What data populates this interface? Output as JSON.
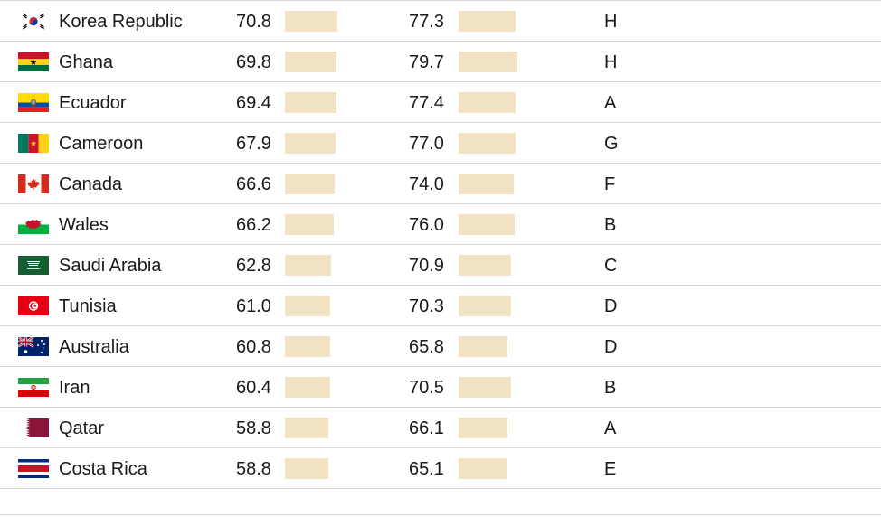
{
  "rows": [
    {
      "country": "Korea Republic",
      "flag": "korea-republic-flag-icon",
      "rating1": "70.8",
      "rating1_value": 70.8,
      "rating2": "77.3",
      "rating2_value": 77.3,
      "group": "H"
    },
    {
      "country": "Ghana",
      "flag": "ghana-flag-icon",
      "rating1": "69.8",
      "rating1_value": 69.8,
      "rating2": "79.7",
      "rating2_value": 79.7,
      "group": "H"
    },
    {
      "country": "Ecuador",
      "flag": "ecuador-flag-icon",
      "rating1": "69.4",
      "rating1_value": 69.4,
      "rating2": "77.4",
      "rating2_value": 77.4,
      "group": "A"
    },
    {
      "country": "Cameroon",
      "flag": "cameroon-flag-icon",
      "rating1": "67.9",
      "rating1_value": 67.9,
      "rating2": "77.0",
      "rating2_value": 77.0,
      "group": "G"
    },
    {
      "country": "Canada",
      "flag": "canada-flag-icon",
      "rating1": "66.6",
      "rating1_value": 66.6,
      "rating2": "74.0",
      "rating2_value": 74.0,
      "group": "F"
    },
    {
      "country": "Wales",
      "flag": "wales-flag-icon",
      "rating1": "66.2",
      "rating1_value": 66.2,
      "rating2": "76.0",
      "rating2_value": 76.0,
      "group": "B"
    },
    {
      "country": "Saudi Arabia",
      "flag": "saudi-arabia-flag-icon",
      "rating1": "62.8",
      "rating1_value": 62.8,
      "rating2": "70.9",
      "rating2_value": 70.9,
      "group": "C"
    },
    {
      "country": "Tunisia",
      "flag": "tunisia-flag-icon",
      "rating1": "61.0",
      "rating1_value": 61.0,
      "rating2": "70.3",
      "rating2_value": 70.3,
      "group": "D"
    },
    {
      "country": "Australia",
      "flag": "australia-flag-icon",
      "rating1": "60.8",
      "rating1_value": 60.8,
      "rating2": "65.8",
      "rating2_value": 65.8,
      "group": "D"
    },
    {
      "country": "Iran",
      "flag": "iran-flag-icon",
      "rating1": "60.4",
      "rating1_value": 60.4,
      "rating2": "70.5",
      "rating2_value": 70.5,
      "group": "B"
    },
    {
      "country": "Qatar",
      "flag": "qatar-flag-icon",
      "rating1": "58.8",
      "rating1_value": 58.8,
      "rating2": "66.1",
      "rating2_value": 66.1,
      "group": "A"
    },
    {
      "country": "Costa Rica",
      "flag": "costa-rica-flag-icon",
      "rating1": "58.8",
      "rating1_value": 58.8,
      "rating2": "65.1",
      "rating2_value": 65.1,
      "group": "E"
    }
  ],
  "colors": {
    "bar": "#f2e2c4",
    "rule": "#d8d8d8",
    "text": "#1a1a1a"
  }
}
